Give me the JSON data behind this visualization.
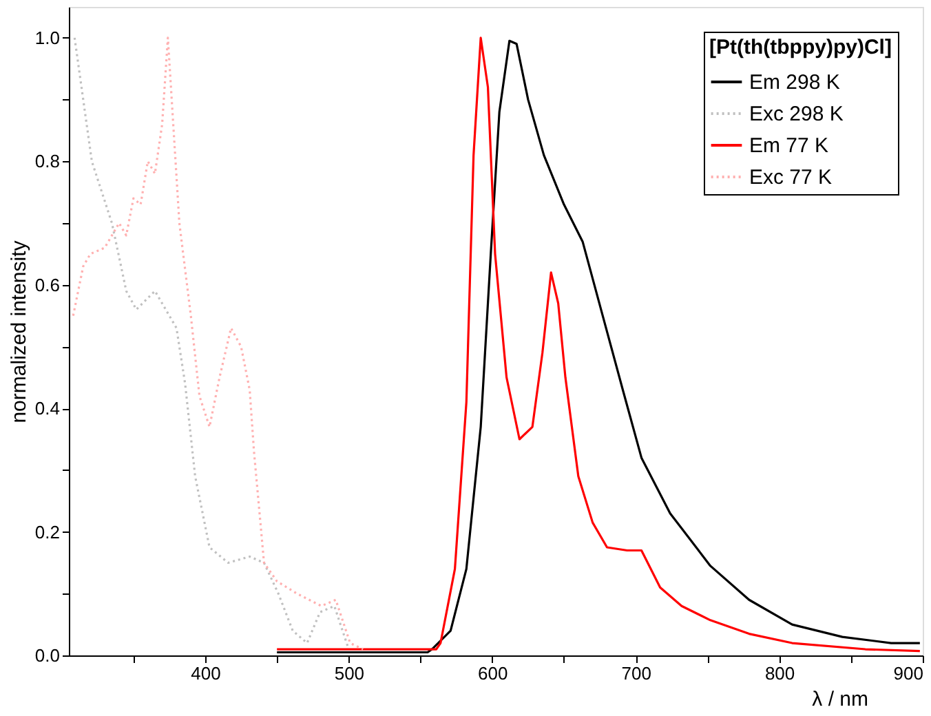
{
  "chart_data": {
    "type": "line",
    "xlabel": "λ / nm",
    "ylabel": "normalized intensity",
    "legend_title": "[Pt(th(tbppy)py)Cl]",
    "xlim": [
      305,
      900
    ],
    "xticks": [
      {
        "value": 350,
        "label": null
      },
      400,
      {
        "value": 450,
        "label": null
      },
      500,
      {
        "value": 550,
        "label": null
      },
      600,
      {
        "value": 650,
        "label": null
      },
      700,
      {
        "value": 750,
        "label": null
      },
      800,
      {
        "value": 850,
        "label": null
      },
      900
    ],
    "ylim": [
      0,
      1.05
    ],
    "yticks": [
      {
        "value": 0,
        "label": "0.0"
      },
      {
        "value": 0.1,
        "label": null
      },
      0.2,
      {
        "value": 0.3,
        "label": null
      },
      0.4,
      {
        "value": 0.5,
        "label": null
      },
      0.6,
      {
        "value": 0.7,
        "label": null
      },
      0.8,
      {
        "value": 0.9,
        "label": null
      },
      {
        "value": 1,
        "label": "1.0"
      }
    ],
    "grid": false,
    "legend": "top right",
    "series": [
      {
        "name": "Em 298 K",
        "color": "#000000",
        "line_style": "solid",
        "x": [
          450,
          555,
          558,
          571,
          582,
          592,
          599,
          605,
          612,
          617,
          625,
          636,
          650,
          663,
          677,
          691,
          704,
          724,
          752,
          779,
          809,
          844,
          878,
          898
        ],
        "values": [
          0.005,
          0.005,
          0.01,
          0.04,
          0.14,
          0.37,
          0.65,
          0.88,
          0.995,
          0.99,
          0.9,
          0.81,
          0.73,
          0.67,
          0.55,
          0.43,
          0.32,
          0.23,
          0.145,
          0.09,
          0.05,
          0.03,
          0.02,
          0.02
        ]
      },
      {
        "name": "Exc 298 K",
        "color": "#c0c0c0",
        "line_style": "dotted",
        "x": [
          309,
          321,
          335,
          345,
          352,
          365,
          380,
          386,
          393,
          403,
          416,
          431,
          441,
          451,
          461,
          471,
          480,
          490,
          500
        ],
        "values": [
          1.0,
          0.8,
          0.7,
          0.59,
          0.56,
          0.59,
          0.53,
          0.44,
          0.29,
          0.175,
          0.15,
          0.16,
          0.15,
          0.1,
          0.04,
          0.02,
          0.07,
          0.08,
          0.01
        ]
      },
      {
        "name": "Em 77 K",
        "color": "#ff0000",
        "line_style": "solid",
        "x": [
          450,
          520,
          561,
          564,
          574,
          582,
          587,
          592,
          597,
          602,
          610,
          619,
          628,
          635,
          641,
          646,
          651,
          660,
          670,
          680,
          694,
          704,
          717,
          732,
          752,
          779,
          809,
          860,
          898
        ],
        "values": [
          0.01,
          0.01,
          0.01,
          0.02,
          0.14,
          0.41,
          0.81,
          1.0,
          0.92,
          0.65,
          0.45,
          0.35,
          0.37,
          0.49,
          0.62,
          0.57,
          0.45,
          0.29,
          0.215,
          0.175,
          0.17,
          0.17,
          0.11,
          0.08,
          0.057,
          0.035,
          0.02,
          0.01,
          0.007
        ]
      },
      {
        "name": "Exc 77 K",
        "color": "#ffb0b0",
        "line_style": "dotted",
        "x": [
          308,
          315,
          320,
          330,
          340,
          345,
          350,
          355,
          360,
          365,
          370,
          374,
          382,
          390,
          396,
          403,
          410,
          418,
          425,
          431,
          434,
          441,
          450,
          464,
          481,
          491,
          501,
          510
        ],
        "values": [
          0.55,
          0.63,
          0.65,
          0.66,
          0.7,
          0.68,
          0.74,
          0.73,
          0.8,
          0.78,
          0.86,
          1.0,
          0.7,
          0.55,
          0.42,
          0.37,
          0.45,
          0.53,
          0.5,
          0.43,
          0.33,
          0.15,
          0.12,
          0.1,
          0.08,
          0.09,
          0.02,
          0.01
        ]
      }
    ]
  }
}
